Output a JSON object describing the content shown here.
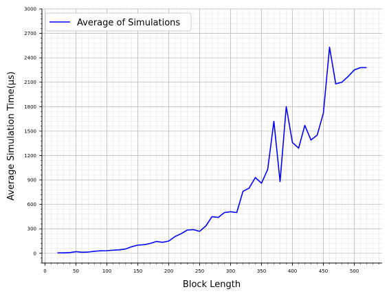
{
  "chart_data": {
    "type": "line",
    "title": "",
    "xlabel": "Block Length",
    "ylabel": "Average Simulation Time(µs)",
    "xlim": [
      -5,
      545
    ],
    "ylim": [
      -120,
      3000
    ],
    "x_ticks": [
      0,
      50,
      100,
      150,
      200,
      250,
      300,
      350,
      400,
      450,
      500
    ],
    "y_ticks": [
      0,
      300,
      600,
      900,
      1200,
      1500,
      1800,
      2100,
      2400,
      2700,
      3000
    ],
    "grid": true,
    "legend_position": "top-left",
    "series": [
      {
        "name": "Average of Simulations",
        "color": "#0000ff",
        "x": [
          20,
          30,
          40,
          50,
          60,
          70,
          80,
          90,
          100,
          110,
          120,
          130,
          140,
          150,
          160,
          170,
          180,
          190,
          200,
          210,
          220,
          230,
          240,
          250,
          260,
          270,
          280,
          290,
          300,
          310,
          320,
          330,
          340,
          350,
          360,
          370,
          380,
          390,
          400,
          410,
          420,
          430,
          440,
          450,
          460,
          470,
          480,
          490,
          500,
          510,
          520
        ],
        "y": [
          5,
          5,
          8,
          20,
          12,
          15,
          25,
          30,
          32,
          38,
          42,
          52,
          80,
          100,
          105,
          120,
          145,
          135,
          150,
          205,
          240,
          285,
          290,
          270,
          335,
          450,
          440,
          500,
          510,
          500,
          760,
          800,
          930,
          860,
          1030,
          1620,
          880,
          1800,
          1360,
          1290,
          1570,
          1390,
          1450,
          1720,
          2530,
          2080,
          2100,
          2170,
          2250,
          2280,
          2280
        ]
      }
    ]
  }
}
